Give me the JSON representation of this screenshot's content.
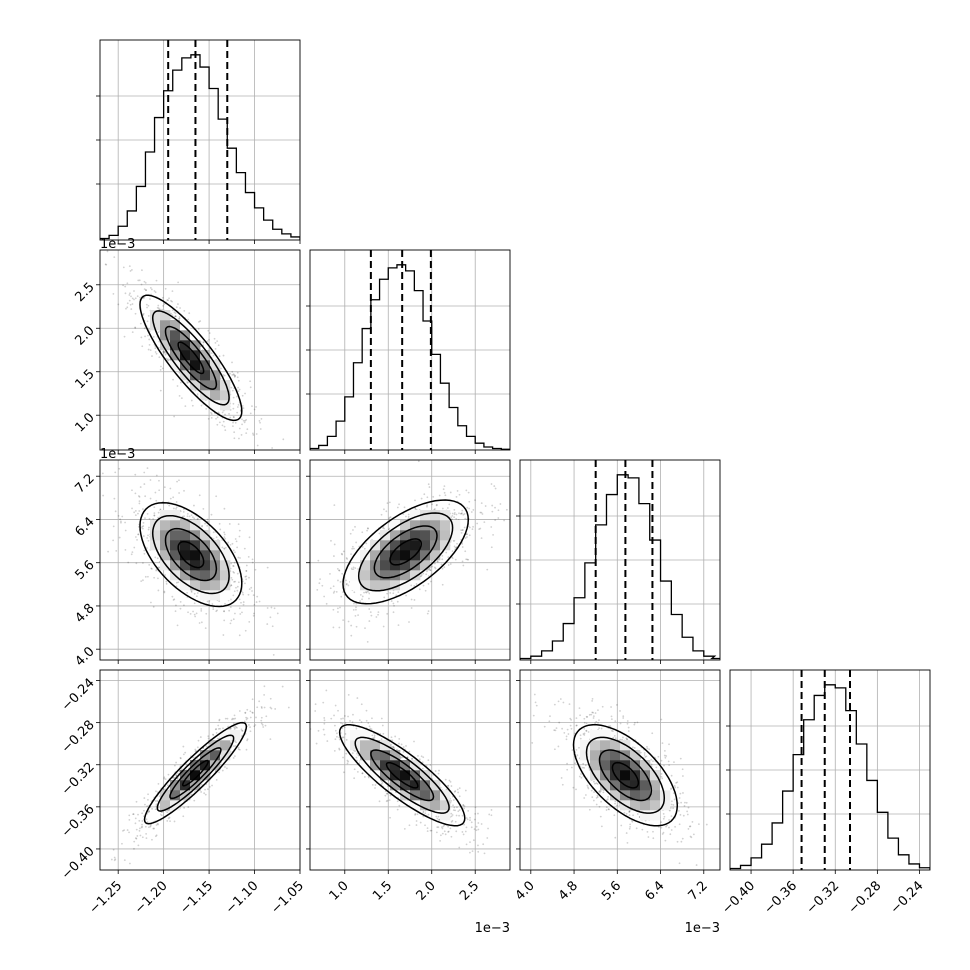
{
  "chart_data": {
    "type": "corner",
    "grid": true,
    "parameters": [
      {
        "range": [
          -1.27,
          -1.05
        ],
        "ticks": [
          -1.25,
          -1.2,
          -1.15,
          -1.1,
          -1.05
        ],
        "tick_labels": [
          "−1.25",
          "−1.20",
          "−1.15",
          "−1.10",
          "−1.05"
        ],
        "offset": "",
        "quantiles": [
          -1.195,
          -1.165,
          -1.13
        ],
        "hist_x": [
          -1.265,
          -1.255,
          -1.245,
          -1.235,
          -1.225,
          -1.215,
          -1.205,
          -1.195,
          -1.185,
          -1.175,
          -1.165,
          -1.155,
          -1.145,
          -1.135,
          -1.125,
          -1.115,
          -1.105,
          -1.095,
          -1.085,
          -1.075,
          -1.065,
          -1.055
        ],
        "hist_y": [
          2,
          6,
          18,
          38,
          70,
          115,
          160,
          195,
          222,
          238,
          242,
          226,
          198,
          158,
          120,
          88,
          62,
          42,
          26,
          14,
          8,
          4
        ]
      },
      {
        "range": [
          0.6,
          2.9
        ],
        "ticks": [
          1.0,
          1.5,
          2.0,
          2.5
        ],
        "tick_labels": [
          "1.0",
          "1.5",
          "2.0",
          "2.5"
        ],
        "offset": "1e−3",
        "quantiles": [
          1.3,
          1.66,
          1.99
        ],
        "hist_x": [
          0.65,
          0.75,
          0.85,
          0.95,
          1.05,
          1.15,
          1.25,
          1.35,
          1.45,
          1.55,
          1.65,
          1.75,
          1.85,
          1.95,
          2.05,
          2.15,
          2.25,
          2.35,
          2.45,
          2.55,
          2.65,
          2.75,
          2.85
        ],
        "hist_y": [
          2,
          6,
          18,
          38,
          70,
          115,
          160,
          198,
          225,
          240,
          244,
          236,
          210,
          170,
          126,
          88,
          56,
          32,
          18,
          9,
          4,
          2,
          1
        ]
      },
      {
        "range": [
          3.8,
          7.5
        ],
        "ticks": [
          4.0,
          4.8,
          5.6,
          6.4,
          7.2
        ],
        "tick_labels": [
          "4.0",
          "4.8",
          "5.6",
          "6.4",
          "7.2"
        ],
        "offset": "1e−3",
        "quantiles": [
          5.2,
          5.75,
          6.25
        ],
        "hist_x": [
          3.9,
          4.1,
          4.3,
          4.5,
          4.7,
          4.9,
          5.1,
          5.3,
          5.5,
          5.7,
          5.9,
          6.1,
          6.3,
          6.5,
          6.7,
          6.9,
          7.1,
          7.3,
          7.45
        ],
        "hist_y": [
          2,
          5,
          12,
          25,
          48,
          82,
          128,
          178,
          218,
          244,
          240,
          206,
          158,
          104,
          60,
          30,
          12,
          5,
          2
        ]
      },
      {
        "range": [
          -0.42,
          -0.23
        ],
        "ticks": [
          -0.4,
          -0.36,
          -0.32,
          -0.28,
          -0.24
        ],
        "tick_labels": [
          "−0.40",
          "−0.36",
          "−0.32",
          "−0.28",
          "−0.24"
        ],
        "offset": "",
        "quantiles": [
          -0.352,
          -0.33,
          -0.306
        ],
        "hist_x": [
          -0.415,
          -0.405,
          -0.395,
          -0.385,
          -0.375,
          -0.365,
          -0.355,
          -0.345,
          -0.335,
          -0.325,
          -0.315,
          -0.305,
          -0.295,
          -0.285,
          -0.275,
          -0.265,
          -0.255,
          -0.245,
          -0.235
        ],
        "hist_y": [
          2,
          6,
          16,
          34,
          62,
          104,
          152,
          198,
          230,
          244,
          240,
          210,
          166,
          118,
          76,
          42,
          20,
          8,
          3
        ]
      }
    ],
    "pairs": [
      {
        "row": 1,
        "col": 0,
        "center": [
          -1.17,
          1.66
        ],
        "sd": [
          0.028,
          0.36
        ],
        "rho": -0.85
      },
      {
        "row": 2,
        "col": 0,
        "center": [
          -1.17,
          5.75
        ],
        "sd": [
          0.028,
          0.48
        ],
        "rho": -0.55
      },
      {
        "row": 2,
        "col": 1,
        "center": [
          1.7,
          5.8
        ],
        "sd": [
          0.36,
          0.48
        ],
        "rho": 0.62
      },
      {
        "row": 3,
        "col": 0,
        "center": [
          -1.165,
          -0.328
        ],
        "sd": [
          0.028,
          0.024
        ],
        "rho": 0.92
      },
      {
        "row": 3,
        "col": 1,
        "center": [
          1.66,
          -0.33
        ],
        "sd": [
          0.36,
          0.024
        ],
        "rho": -0.85
      },
      {
        "row": 3,
        "col": 2,
        "center": [
          5.75,
          -0.33
        ],
        "sd": [
          0.48,
          0.024
        ],
        "rho": -0.6
      }
    ]
  }
}
